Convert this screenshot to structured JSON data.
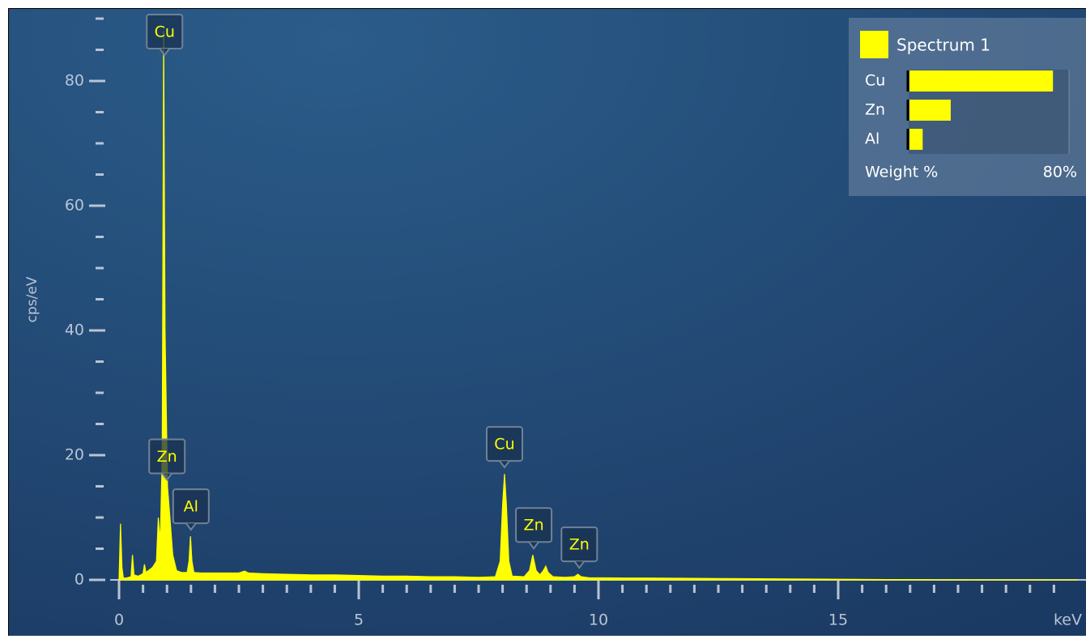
{
  "chart_data": [
    {
      "type": "area",
      "x_label": "keV",
      "y_label": "cps/eV",
      "color": "#ffff00",
      "x": [
        0,
        0.03,
        0.06,
        0.09,
        0.15,
        0.25,
        0.28,
        0.31,
        0.4,
        0.5,
        0.53,
        0.56,
        0.7,
        0.78,
        0.82,
        0.86,
        0.9,
        0.93,
        0.96,
        1.01,
        1.06,
        1.12,
        1.2,
        1.3,
        1.42,
        1.46,
        1.49,
        1.52,
        1.56,
        1.7,
        2.0,
        2.5,
        2.62,
        2.7,
        3.0,
        3.5,
        4.0,
        4.5,
        5.0,
        5.5,
        6.0,
        6.5,
        7.0,
        7.5,
        7.85,
        7.95,
        8.0,
        8.04,
        8.08,
        8.13,
        8.2,
        8.45,
        8.56,
        8.63,
        8.7,
        8.78,
        8.85,
        8.9,
        8.95,
        9.05,
        9.3,
        9.5,
        9.57,
        9.64,
        9.8,
        10.5,
        11,
        12,
        13,
        14,
        15,
        16,
        17,
        18,
        20
      ],
      "values": [
        0,
        9,
        2,
        0.3,
        0.3,
        0.5,
        4,
        0.8,
        0.6,
        1,
        2.5,
        1.2,
        2,
        3,
        10,
        6,
        20,
        88,
        40,
        15,
        10,
        4,
        1.5,
        1.2,
        1.2,
        3,
        7,
        3,
        1.2,
        1.1,
        1.1,
        1.1,
        1.4,
        1.1,
        1.0,
        0.9,
        0.8,
        0.8,
        0.7,
        0.6,
        0.6,
        0.5,
        0.5,
        0.4,
        0.5,
        3,
        12,
        17,
        12,
        3,
        0.6,
        0.5,
        1.5,
        4,
        1.5,
        0.8,
        1.5,
        2.2,
        1.2,
        0.5,
        0.4,
        0.5,
        0.9,
        0.5,
        0.35,
        0.3,
        0.3,
        0.25,
        0.2,
        0.15,
        0.1,
        0.05,
        0.02,
        0,
        0
      ],
      "xlim": [
        0,
        20
      ],
      "ylim": [
        0,
        91
      ],
      "xticks": [
        0,
        5,
        10,
        15
      ],
      "yticks": [
        0,
        20,
        40,
        60,
        80
      ],
      "xminorticks": [
        0.5,
        1,
        1.5,
        2,
        2.5,
        3,
        3.5,
        4,
        4.5,
        5.5,
        6,
        6.5,
        7,
        7.5,
        8,
        8.5,
        9,
        9.5,
        10.5,
        11,
        11.5,
        12,
        12.5,
        13,
        13.5,
        14,
        14.5,
        15.5,
        16,
        16.5,
        17,
        17.5,
        18,
        18.5,
        19,
        19.5
      ],
      "yminorticks": [
        5,
        10,
        15,
        25,
        30,
        35,
        45,
        50,
        55,
        65,
        70,
        75,
        85,
        90
      ],
      "annotations": [
        {
          "text": "Cu",
          "x": 0.95,
          "y": 88
        },
        {
          "text": "Zn",
          "x": 1.0,
          "y": 15
        },
        {
          "text": "Al",
          "x": 1.5,
          "y": 7
        },
        {
          "text": "Cu",
          "x": 8.04,
          "y": 17
        },
        {
          "text": "Zn",
          "x": 8.65,
          "y": 4
        },
        {
          "text": "Zn",
          "x": 9.6,
          "y": 0.9
        }
      ]
    },
    {
      "type": "hbar",
      "legend": "Spectrum 1",
      "color": "#ffff00",
      "x_label": "Weight %",
      "categories": [
        "Cu",
        "Zn",
        "Al"
      ],
      "values": [
        72,
        21,
        7
      ],
      "xlim": [
        0,
        80
      ],
      "xticks": [
        {
          "value": 80,
          "label": "80%"
        }
      ]
    }
  ]
}
